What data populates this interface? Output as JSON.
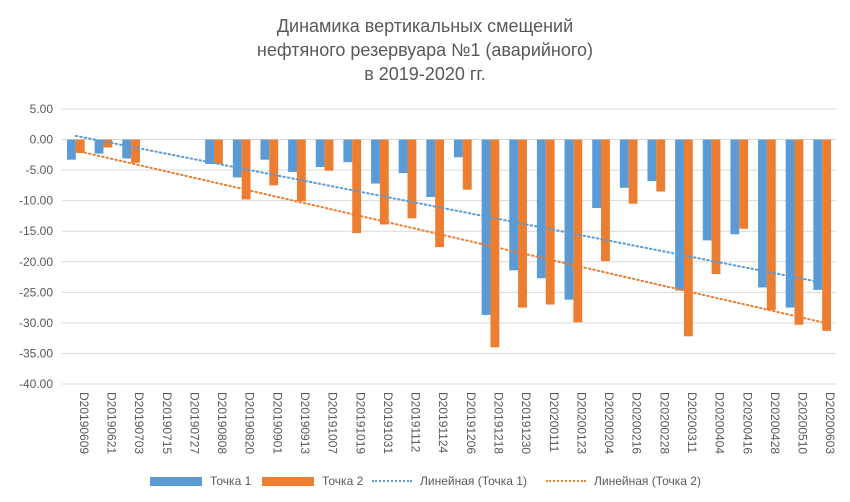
{
  "chart_data": {
    "type": "bar",
    "title": [
      "Динамика вертикальных смещений",
      "нефтяного резервуара №1 (аварийного)",
      "в 2019-2020 гг."
    ],
    "xlabel": "",
    "ylabel": "",
    "ylim": [
      -40,
      5
    ],
    "yticks": [
      "5.00",
      "0.00",
      "-5.00",
      "-10.00",
      "-15.00",
      "-20.00",
      "-25.00",
      "-30.00",
      "-35.00",
      "-40.00"
    ],
    "grid": true,
    "legend_position": "bottom",
    "colors": {
      "series1": "#5B9BD5",
      "series2": "#ED7D31",
      "grid": "#D9D9D9",
      "axis": "#BFBFBF"
    },
    "categories": [
      "D20190609",
      "D20190621",
      "D20190703",
      "D20190715",
      "D20190727",
      "D20190808",
      "D20190820",
      "D20190901",
      "D20190913",
      "D20191007",
      "D20191019",
      "D20191031",
      "D20191112",
      "D20191124",
      "D20191206",
      "D20191218",
      "D20191230",
      "D20200111",
      "D20200123",
      "D20200204",
      "D20200216",
      "D20200228",
      "D20200311",
      "D20200404",
      "D20200416",
      "D20200428",
      "D20200510",
      "D20200603"
    ],
    "series": [
      {
        "name": "Точка 1",
        "values": [
          -3.3,
          -2.3,
          -3.1,
          0,
          0,
          -4.0,
          -6.2,
          -3.3,
          -5.3,
          -4.5,
          -3.7,
          -7.2,
          -5.5,
          -9.4,
          -2.9,
          -28.7,
          -21.4,
          -22.7,
          -26.2,
          -11.2,
          -7.9,
          -6.8,
          -24.7,
          -16.5,
          -15.5,
          -24.2,
          -27.5,
          -24.6
        ]
      },
      {
        "name": "Точка 2",
        "values": [
          -2.2,
          -1.3,
          -3.8,
          0,
          0,
          -4.0,
          -9.8,
          -7.5,
          -10.1,
          -5.1,
          -15.3,
          -13.9,
          -12.9,
          -17.6,
          -8.2,
          -34.0,
          -27.5,
          -27.0,
          -29.9,
          -19.9,
          -10.5,
          -8.5,
          -32.2,
          -22.0,
          -14.6,
          -27.9,
          -30.3,
          -31.3
        ]
      }
    ],
    "trendlines": [
      {
        "name": "Линейная (Точка 1)",
        "series": "Точка 1",
        "style": "dotted",
        "from": 0.6,
        "to": -23.4
      },
      {
        "name": "Линейная (Точка 2)",
        "series": "Точка 2",
        "style": "dotted",
        "from": -1.8,
        "to": -29.9
      }
    ]
  }
}
